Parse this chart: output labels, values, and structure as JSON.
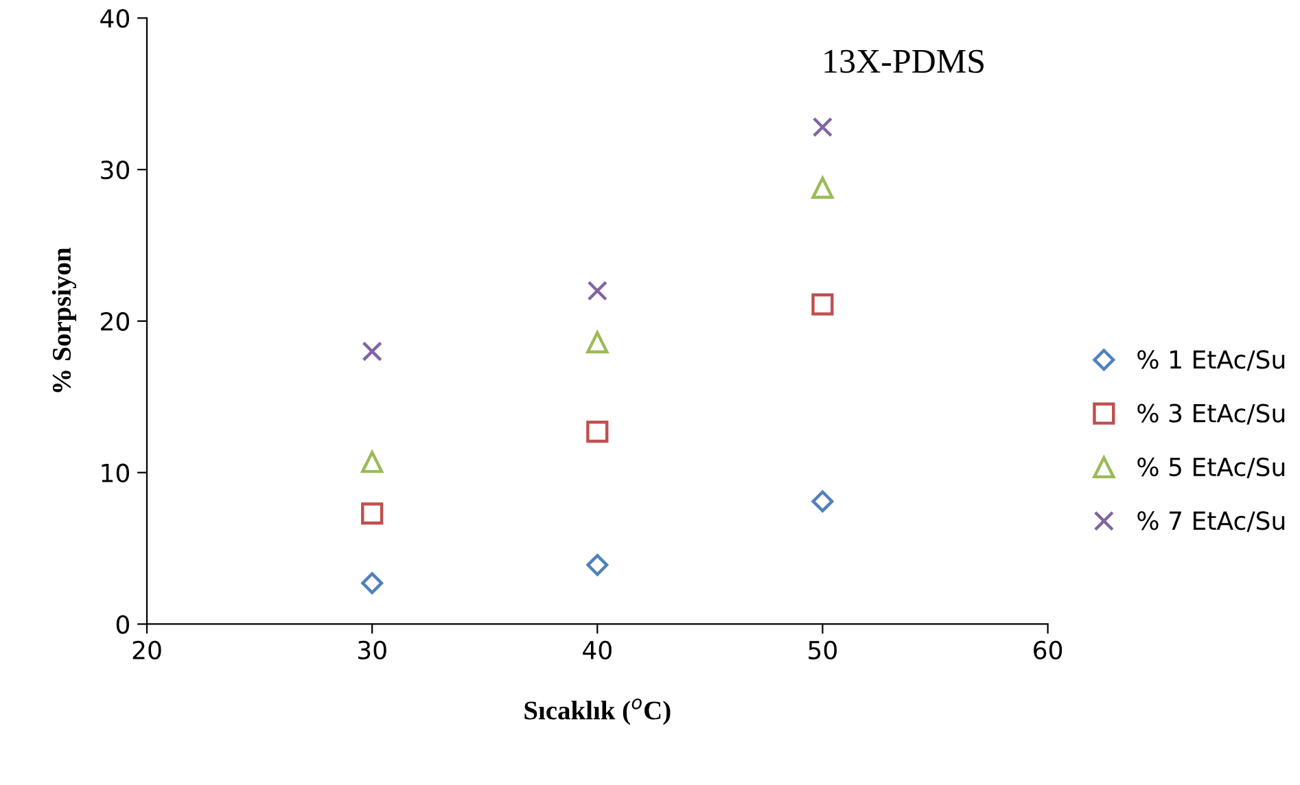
{
  "chart_data": {
    "type": "scatter",
    "xlabel": "Sıcaklık ($^{o}$C)",
    "ylabel": "% Sorpsiyon",
    "annotations": [
      "13X-PDMS"
    ],
    "x": [
      30,
      40,
      50
    ],
    "series": [
      {
        "name": "% 1 EtAc/Su",
        "color": "#4f81bd",
        "marker": "diamond",
        "values": [
          2.7,
          3.9,
          8.1
        ]
      },
      {
        "name": "% 3 EtAc/Su",
        "color": "#c0504d",
        "marker": "square",
        "values": [
          7.3,
          12.7,
          21.1
        ]
      },
      {
        "name": "% 5 EtAc/Su",
        "color": "#9bbb59",
        "marker": "triangle",
        "values": [
          10.7,
          18.6,
          28.8
        ]
      },
      {
        "name": "% 7 EtAc/Su",
        "color": "#8064a2",
        "marker": "cross",
        "values": [
          18.0,
          22.0,
          32.8
        ]
      }
    ],
    "xlim": [
      20,
      60
    ],
    "xticks": [
      20,
      30,
      40,
      50,
      60
    ],
    "ylim": [
      0,
      40
    ],
    "yticks": [
      0,
      10,
      20,
      30,
      40
    ],
    "grid": false,
    "legend": "right"
  }
}
